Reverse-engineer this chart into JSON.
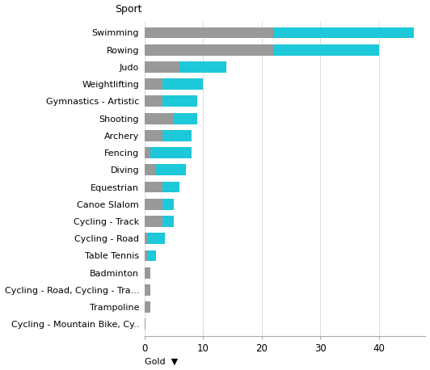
{
  "sports": [
    "Swimming",
    "Rowing",
    "Judo",
    "Weightlifting",
    "Gymnastics - Artistic",
    "Shooting",
    "Archery",
    "Fencing",
    "Diving",
    "Equestrian",
    "Canoe Slalom",
    "Cycling - Track",
    "Cycling - Road",
    "Table Tennis",
    "Badminton",
    "Cycling - Road, Cycling - Tra...",
    "Trampoline",
    "Cycling - Mountain Bike, Cy.."
  ],
  "gray_values": [
    22,
    22,
    6,
    3,
    3,
    5,
    3,
    1,
    2,
    3,
    3,
    3,
    0.5,
    0.5,
    1,
    1,
    1,
    0.2
  ],
  "cyan_values": [
    24,
    18,
    8,
    7,
    6,
    4,
    5,
    7,
    5,
    3,
    2,
    2,
    3,
    1.5,
    0,
    0,
    0,
    0
  ],
  "gray_color": "#999999",
  "cyan_color": "#1DC8D8",
  "title": "Sport",
  "xlabel": "Gold",
  "bg_color": "#ffffff",
  "xlim": [
    0,
    48
  ],
  "xticks": [
    0,
    10,
    20,
    30,
    40
  ],
  "bar_height": 0.65,
  "title_fontsize": 9,
  "label_fontsize": 8,
  "tick_fontsize": 8.5
}
